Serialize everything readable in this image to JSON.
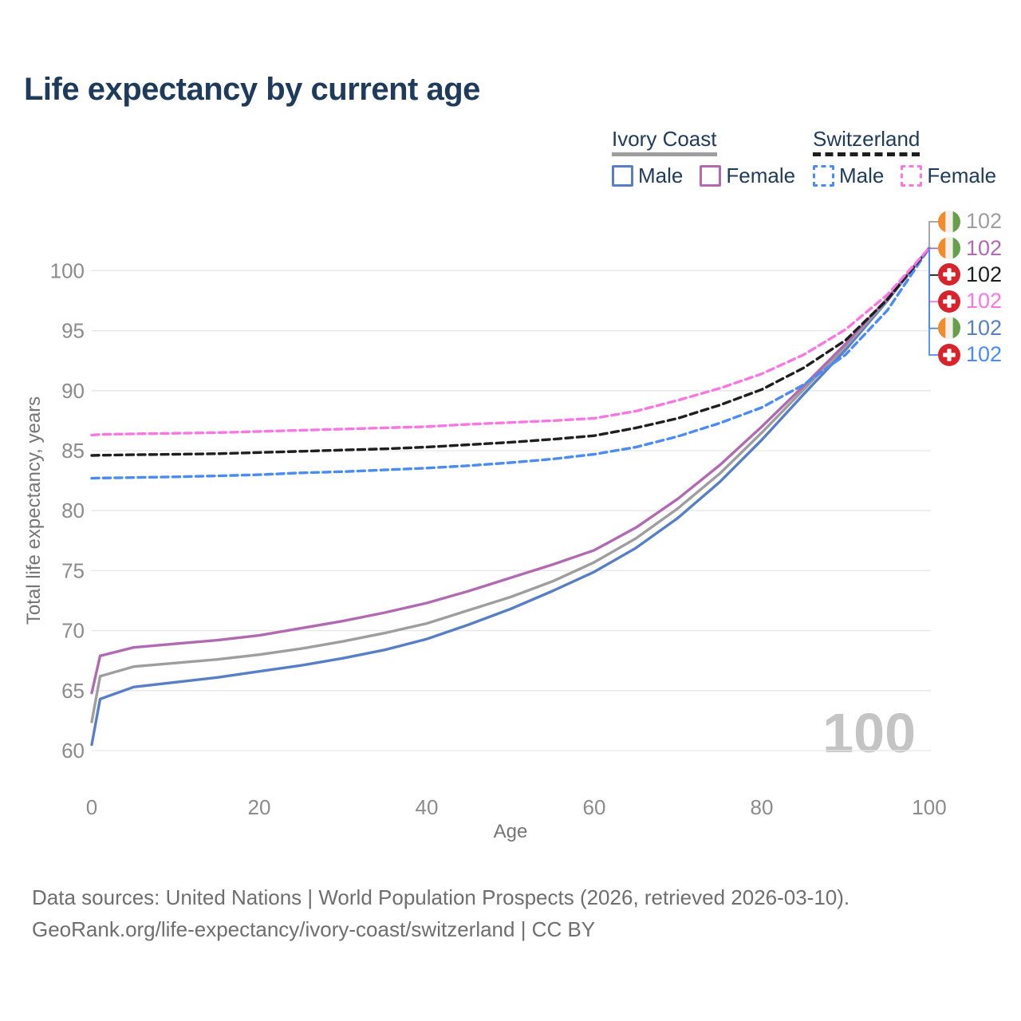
{
  "title": "Life expectancy by current age",
  "legend": {
    "groups": [
      {
        "label": "Ivory Coast",
        "line_style": "solid",
        "underline_color": "#9e9e9e",
        "items": [
          {
            "label": "Male",
            "color": "#577fc6",
            "dashed": false
          },
          {
            "label": "Female",
            "color": "#b16ab2",
            "dashed": false
          }
        ]
      },
      {
        "label": "Switzerland",
        "line_style": "dashed",
        "underline_color": "#1e1e1e",
        "items": [
          {
            "label": "Male",
            "color": "#4b8bf5",
            "dashed": true
          },
          {
            "label": "Female",
            "color": "#fb76e2",
            "dashed": true
          }
        ]
      }
    ]
  },
  "chart_data": {
    "type": "line",
    "title": "Life expectancy by current age",
    "xlabel": "Age",
    "ylabel": "Total life expectancy, years",
    "x_ticks": [
      0,
      20,
      40,
      60,
      80,
      100
    ],
    "y_ticks": [
      60,
      65,
      70,
      75,
      80,
      85,
      90,
      95,
      100
    ],
    "x_range": [
      0,
      100
    ],
    "y_range": [
      58,
      103
    ],
    "grid": "horizontal",
    "legend_position": "top-right",
    "age_counter": "100",
    "ages": [
      0,
      1,
      5,
      10,
      15,
      20,
      25,
      30,
      35,
      40,
      45,
      50,
      55,
      60,
      65,
      70,
      75,
      80,
      85,
      90,
      95,
      100
    ],
    "series": [
      {
        "id": "ic-male",
        "name": "Ivory Coast Male",
        "color": "#577fc6",
        "dashed": false,
        "values": [
          60.5,
          64.3,
          65.3,
          65.7,
          66.1,
          66.6,
          67.1,
          67.7,
          68.4,
          69.3,
          70.5,
          71.8,
          73.3,
          74.9,
          76.9,
          79.4,
          82.4,
          85.9,
          89.7,
          93.4,
          97.5,
          101.9
        ]
      },
      {
        "id": "ic-both",
        "name": "Ivory Coast Both sexes",
        "color": "#9e9e9e",
        "dashed": false,
        "values": [
          62.4,
          66.2,
          67.0,
          67.3,
          67.6,
          68.0,
          68.5,
          69.1,
          69.8,
          70.6,
          71.7,
          72.8,
          74.1,
          75.7,
          77.7,
          80.2,
          83.1,
          86.5,
          90.1,
          93.7,
          97.6,
          101.9
        ]
      },
      {
        "id": "ic-female",
        "name": "Ivory Coast Female",
        "color": "#b16ab2",
        "dashed": false,
        "values": [
          64.8,
          67.9,
          68.6,
          68.9,
          69.2,
          69.6,
          70.2,
          70.8,
          71.5,
          72.3,
          73.3,
          74.4,
          75.5,
          76.7,
          78.6,
          81.0,
          83.8,
          87.0,
          90.4,
          93.9,
          97.7,
          101.9
        ]
      },
      {
        "id": "ch-male",
        "name": "Switzerland Male",
        "color": "#4b8bf5",
        "dashed": true,
        "values": [
          82.7,
          82.72,
          82.76,
          82.82,
          82.9,
          83.0,
          83.15,
          83.25,
          83.4,
          83.55,
          83.75,
          84.0,
          84.3,
          84.7,
          85.3,
          86.2,
          87.3,
          88.6,
          90.5,
          93.0,
          96.7,
          101.9
        ]
      },
      {
        "id": "ch-both",
        "name": "Switzerland Both sexes",
        "color": "#1e1e1e",
        "dashed": true,
        "values": [
          84.6,
          84.62,
          84.66,
          84.7,
          84.75,
          84.85,
          84.95,
          85.05,
          85.15,
          85.3,
          85.5,
          85.7,
          85.95,
          86.25,
          86.9,
          87.7,
          88.8,
          90.1,
          91.9,
          94.2,
          97.6,
          101.9
        ]
      },
      {
        "id": "ch-female",
        "name": "Switzerland Female",
        "color": "#fb76e2",
        "dashed": true,
        "values": [
          86.3,
          86.35,
          86.4,
          86.45,
          86.5,
          86.6,
          86.7,
          86.8,
          86.9,
          87.0,
          87.2,
          87.35,
          87.5,
          87.7,
          88.3,
          89.2,
          90.2,
          91.4,
          93.0,
          95.1,
          98.0,
          101.9
        ]
      }
    ],
    "end_labels": [
      {
        "series_id": "ic-both",
        "flag": "ivory-coast",
        "value": "102",
        "color": "#9e9e9e"
      },
      {
        "series_id": "ic-female",
        "flag": "ivory-coast",
        "value": "102",
        "color": "#b16ab2"
      },
      {
        "series_id": "ch-both",
        "flag": "switzerland",
        "value": "102",
        "color": "#1e1e1e"
      },
      {
        "series_id": "ch-female",
        "flag": "switzerland",
        "value": "102",
        "color": "#fb76e2"
      },
      {
        "series_id": "ic-male",
        "flag": "ivory-coast",
        "value": "102",
        "color": "#577fc6"
      },
      {
        "series_id": "ch-male",
        "flag": "switzerland",
        "value": "102",
        "color": "#4b8bf5"
      }
    ]
  },
  "flags": {
    "ivory_coast": {
      "orange": "#F28B2C",
      "white": "#F2F1EC",
      "green": "#679E4C"
    },
    "switzerland": {
      "red": "#D7232B",
      "cross": "#FFFFFF"
    }
  },
  "colors": {
    "title_text": "#1f3b5c",
    "gridline": "#e6e6e6",
    "tick_text": "#8b8b8b",
    "axis_title_text": "#757575",
    "footer_text": "#6e6e6e",
    "watermark": "#c4c4c4"
  },
  "footer": {
    "line1": "Data sources: United Nations | World Population Prospects (2026, retrieved 2026-03-10).",
    "line2": "GeoRank.org/life-expectancy/ivory-coast/switzerland | CC BY"
  }
}
